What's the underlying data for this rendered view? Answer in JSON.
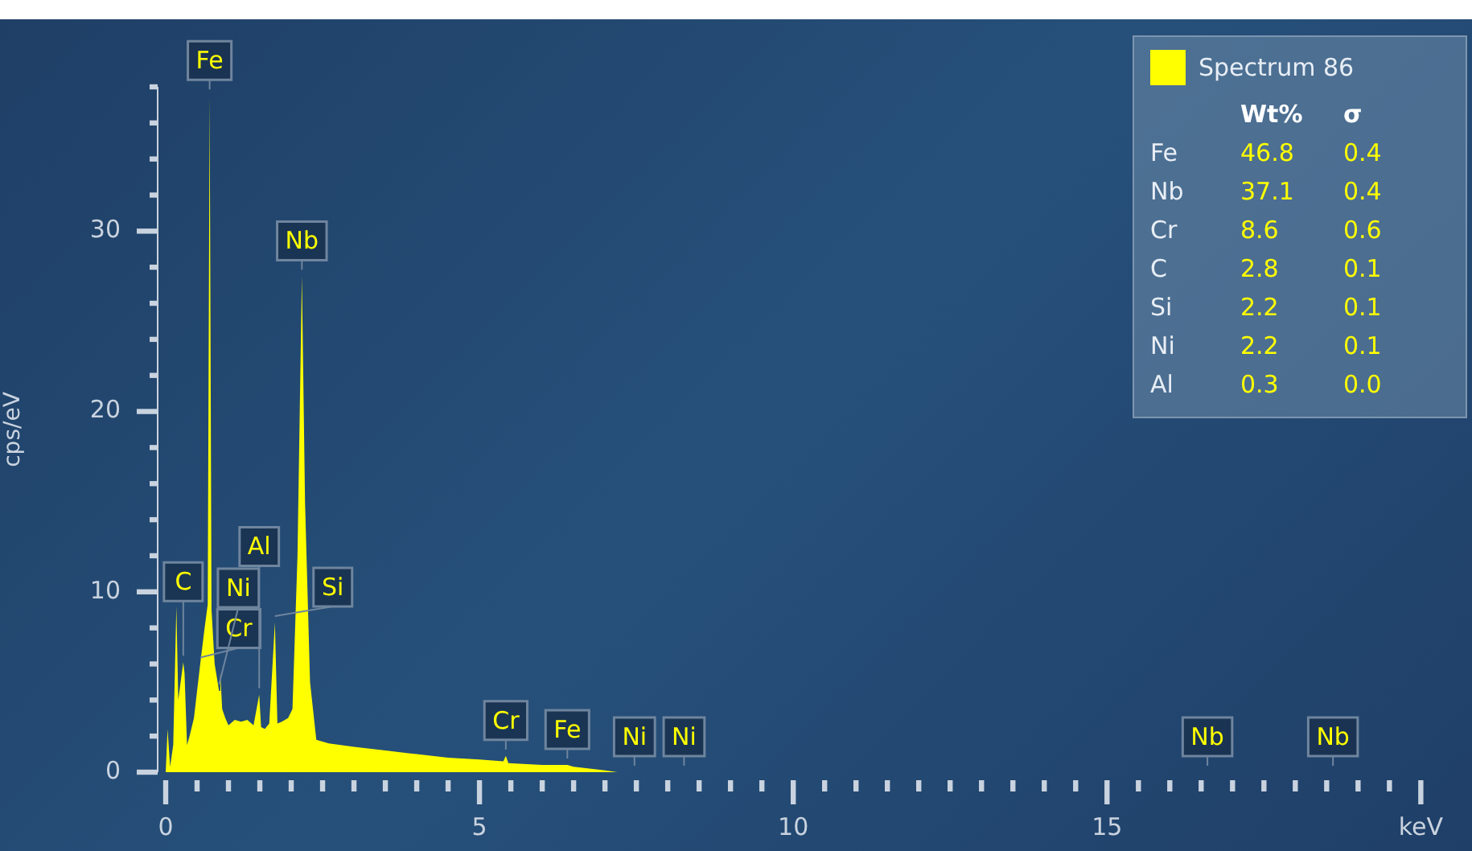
{
  "chart_data": {
    "type": "area",
    "ylabel": "cps/eV",
    "xlim": [
      0,
      20
    ],
    "ylim": [
      0,
      38
    ],
    "xticks": [
      0,
      {
        "value": 0.5,
        "label": null
      },
      {
        "value": 1,
        "label": null
      },
      {
        "value": 1.5,
        "label": null
      },
      {
        "value": 2,
        "label": null
      },
      {
        "value": 2.5,
        "label": null
      },
      {
        "value": 3,
        "label": null
      },
      {
        "value": 3.5,
        "label": null
      },
      {
        "value": 4,
        "label": null
      },
      {
        "value": 4.5,
        "label": null
      },
      5,
      {
        "value": 5.5,
        "label": null
      },
      {
        "value": 6,
        "label": null
      },
      {
        "value": 6.5,
        "label": null
      },
      {
        "value": 7,
        "label": null
      },
      {
        "value": 7.5,
        "label": null
      },
      {
        "value": 8,
        "label": null
      },
      {
        "value": 8.5,
        "label": null
      },
      {
        "value": 9,
        "label": null
      },
      {
        "value": 9.5,
        "label": null
      },
      10,
      {
        "value": 10.5,
        "label": null
      },
      {
        "value": 11,
        "label": null
      },
      {
        "value": 11.5,
        "label": null
      },
      {
        "value": 12,
        "label": null
      },
      {
        "value": 12.5,
        "label": null
      },
      {
        "value": 13,
        "label": null
      },
      {
        "value": 13.5,
        "label": null
      },
      {
        "value": 14,
        "label": null
      },
      {
        "value": 14.5,
        "label": null
      },
      15,
      {
        "value": 15.5,
        "label": null
      },
      {
        "value": 16,
        "label": null
      },
      {
        "value": 16.5,
        "label": null
      },
      {
        "value": 17,
        "label": null
      },
      {
        "value": 17.5,
        "label": null
      },
      {
        "value": 18,
        "label": null
      },
      {
        "value": 18.5,
        "label": null
      },
      {
        "value": 19,
        "label": null
      },
      {
        "value": 19.5,
        "label": null
      },
      {
        "value": 20,
        "label": "keV"
      }
    ],
    "yticks": [
      0,
      {
        "value": 2,
        "label": null
      },
      {
        "value": 4,
        "label": null
      },
      {
        "value": 6,
        "label": null
      },
      {
        "value": 8,
        "label": null
      },
      10,
      {
        "value": 12,
        "label": null
      },
      {
        "value": 14,
        "label": null
      },
      {
        "value": 16,
        "label": null
      },
      {
        "value": 18,
        "label": null
      },
      20,
      {
        "value": 22,
        "label": null
      },
      {
        "value": 24,
        "label": null
      },
      {
        "value": 26,
        "label": null
      },
      {
        "value": 28,
        "label": null
      },
      30,
      {
        "value": 32,
        "label": null
      },
      {
        "value": 34,
        "label": null
      },
      {
        "value": 36,
        "label": null
      },
      {
        "value": 38,
        "label": null
      }
    ],
    "grid": false,
    "legend": "top right",
    "marker": "none",
    "series": [
      {
        "name": "Spectrum 86",
        "color": "#ffff00",
        "x": [
          0,
          0.03,
          0.07,
          0.12,
          0.17,
          0.2,
          0.28,
          0.3,
          0.34,
          0.38,
          0.45,
          0.5,
          0.55,
          0.62,
          0.67,
          0.7,
          0.73,
          0.78,
          0.85,
          0.87,
          0.9,
          0.95,
          1,
          1.1,
          1.2,
          1.3,
          1.4,
          1.49,
          1.52,
          1.58,
          1.65,
          1.74,
          1.78,
          1.85,
          1.95,
          2.02,
          2.1,
          2.17,
          2.22,
          2.3,
          2.4,
          2.6,
          3,
          3.5,
          4,
          4.5,
          5,
          5.38,
          5.42,
          5.46,
          6,
          6.4,
          6.5,
          7,
          7.2,
          7.47,
          8.26,
          16.6,
          18.6,
          20
        ],
        "values": [
          0,
          2.4,
          0.3,
          1.5,
          9.2,
          4,
          6.1,
          5.5,
          1.5,
          2,
          3,
          4.5,
          6,
          8,
          9.3,
          37.5,
          9,
          6,
          4.5,
          5.5,
          3.5,
          3,
          2.6,
          2.9,
          2.8,
          2.9,
          2.6,
          4.3,
          2.5,
          2.4,
          2.7,
          8.3,
          2.7,
          2.8,
          3,
          3.5,
          12,
          27.5,
          15,
          5,
          1.8,
          1.6,
          1.4,
          1.2,
          1,
          0.8,
          0.7,
          0.6,
          0.9,
          0.5,
          0.4,
          0.4,
          0.3,
          0.1,
          0,
          0,
          0,
          0,
          0,
          0
        ]
      }
    ],
    "annotations": [
      {
        "text": "Fe",
        "x": 0.7,
        "y": 37.5
      },
      {
        "text": "Nb",
        "x": 2.17,
        "y": 27.5
      },
      {
        "text": "Ni",
        "x": 0.85,
        "y": 4.5
      },
      {
        "text": "Cr",
        "x": 0.55,
        "y": 6
      },
      {
        "text": "C",
        "x": 0.28,
        "y": 6.1
      },
      {
        "text": "Si",
        "x": 1.74,
        "y": 8.3
      },
      {
        "text": "Al",
        "x": 1.49,
        "y": 4.3
      },
      {
        "text": "Cr",
        "x": 5.42,
        "y": 0.9
      },
      {
        "text": "Fe",
        "x": 6.4,
        "y": 0.4
      },
      {
        "text": "Ni",
        "x": 7.47,
        "y": 0
      },
      {
        "text": "Ni",
        "x": 8.26,
        "y": 0
      },
      {
        "text": "Nb",
        "x": 16.6,
        "y": 0
      },
      {
        "text": "Nb",
        "x": 18.6,
        "y": 0
      },
      "\tWt%\tσ",
      "Fe\t46.8\t0.4",
      "Nb\t37.1\t0.4",
      "Cr\t8.6\t0.6",
      "C\t2.8\t0.1",
      "Si\t2.2\t0.1",
      "Ni\t2.2\t0.1",
      "Al\t0.3\t0.0"
    ]
  }
}
